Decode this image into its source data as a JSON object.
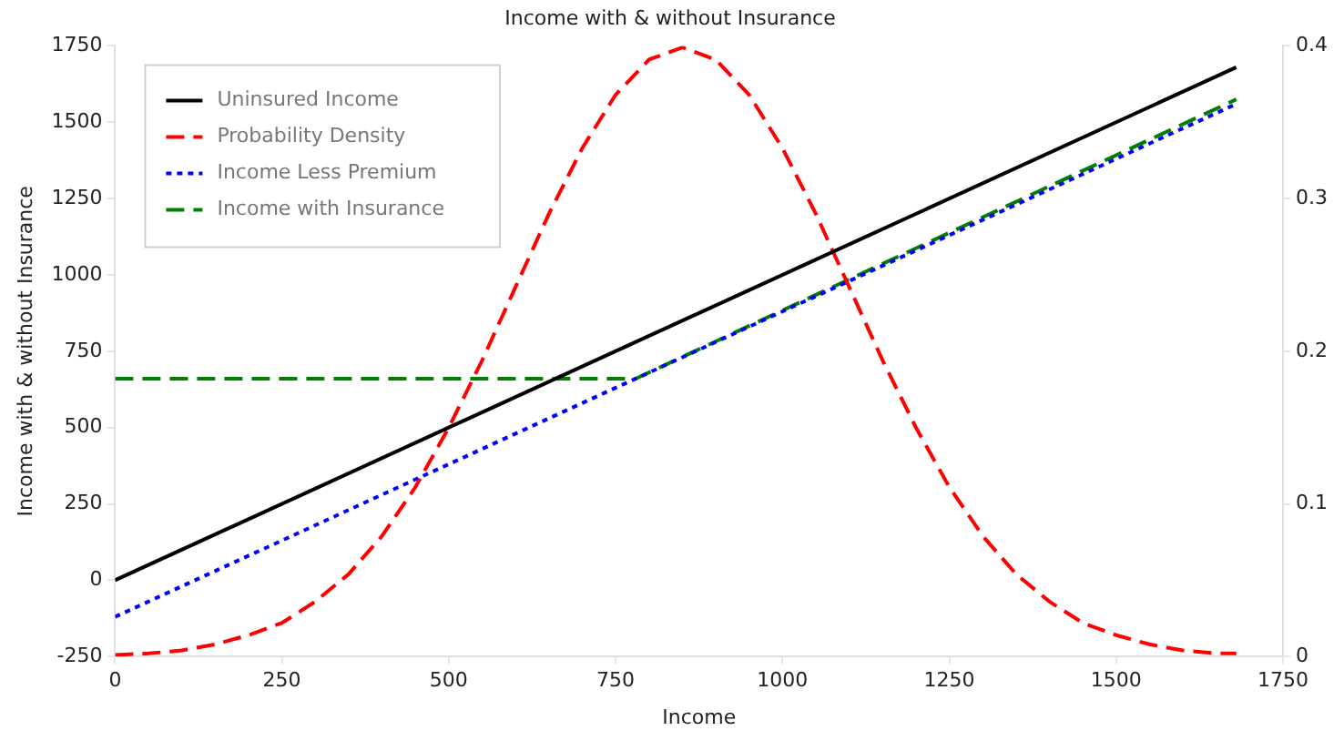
{
  "chart_data": {
    "type": "line",
    "title": "Income with & without Insurance",
    "xlabel": "Income",
    "ylabel": "Income with & without Insurance",
    "xlim": [
      0,
      1750
    ],
    "xticks": [
      0,
      250,
      500,
      750,
      1000,
      1250,
      1500,
      1750
    ],
    "ylim": [
      -250,
      1750
    ],
    "yticks": [
      -250,
      0,
      250,
      500,
      750,
      1000,
      1250,
      1500,
      1750
    ],
    "y2lim": [
      0,
      0.4
    ],
    "y2ticks": [
      0,
      0.1,
      0.2,
      0.3,
      0.4
    ],
    "grid": false,
    "legend": "top left",
    "marker": "none",
    "series": [
      {
        "name": "Uninsured Income",
        "color": "#000000",
        "line_style": "solid",
        "x": [
          0,
          1680
        ],
        "values": [
          0,
          1680
        ]
      },
      {
        "name": "Probability Density",
        "color": "#ff0000",
        "line_style": "dashed",
        "axis": "y2",
        "x": [
          0,
          50,
          100,
          150,
          200,
          250,
          300,
          350,
          400,
          450,
          500,
          550,
          600,
          650,
          700,
          750,
          800,
          850,
          900,
          950,
          1000,
          1050,
          1100,
          1150,
          1200,
          1250,
          1300,
          1350,
          1400,
          1450,
          1500,
          1550,
          1600,
          1650,
          1680
        ],
        "values": [
          0.001,
          0.002,
          0.004,
          0.008,
          0.014,
          0.022,
          0.036,
          0.054,
          0.079,
          0.111,
          0.15,
          0.194,
          0.242,
          0.29,
          0.333,
          0.368,
          0.391,
          0.399,
          0.391,
          0.368,
          0.333,
          0.29,
          0.242,
          0.194,
          0.15,
          0.111,
          0.079,
          0.054,
          0.036,
          0.022,
          0.014,
          0.008,
          0.004,
          0.002,
          0.002
        ]
      },
      {
        "name": "Income Less Premium",
        "color": "#0000ff",
        "line_style": "dotted",
        "x": [
          0,
          1680
        ],
        "values": [
          -120,
          1560
        ]
      },
      {
        "name": "Income with Insurance",
        "color": "#008000",
        "line_style": "dashed",
        "x": [
          0,
          780,
          1680
        ],
        "values": [
          660,
          660,
          1575
        ]
      }
    ]
  }
}
